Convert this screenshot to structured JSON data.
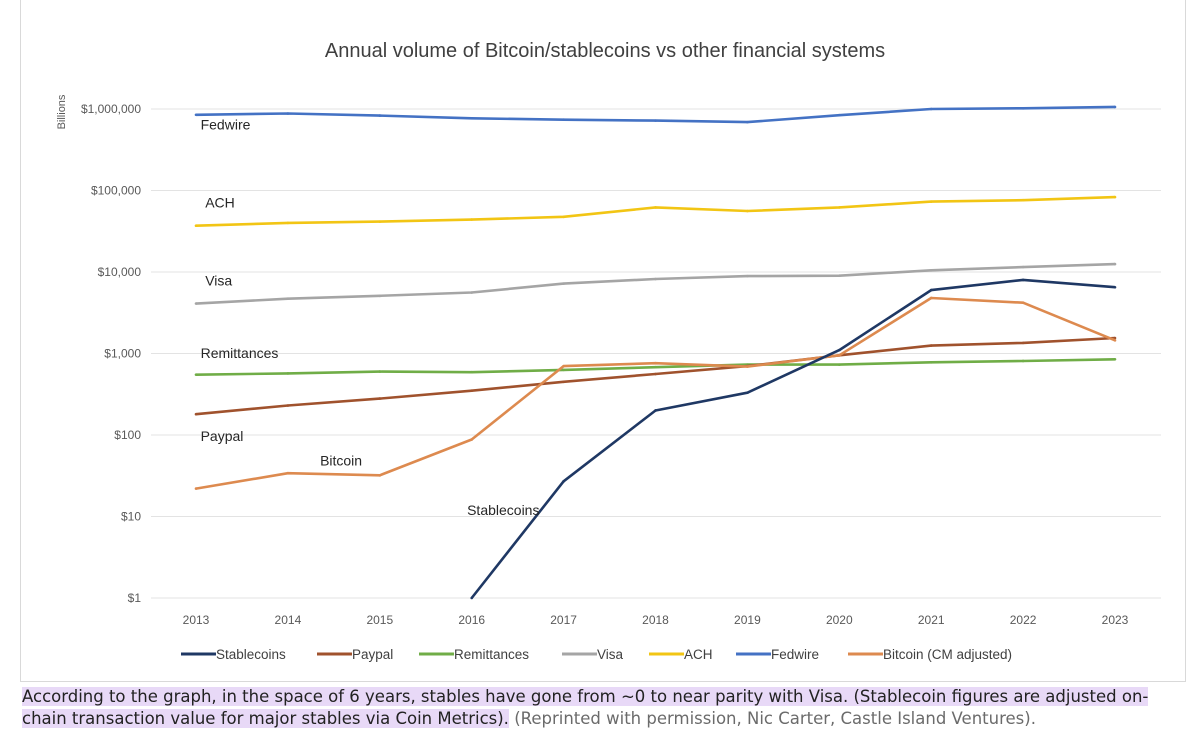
{
  "chart_data": {
    "type": "line",
    "title": "Annual volume of Bitcoin/stablecoins vs other financial systems",
    "ylabel": "Billions",
    "xlabel": "",
    "y_scale": "log",
    "ylim": [
      1,
      1000000
    ],
    "y_ticks": [
      {
        "value": 1,
        "label": "$1"
      },
      {
        "value": 10,
        "label": "$10"
      },
      {
        "value": 100,
        "label": "$100"
      },
      {
        "value": 1000,
        "label": "$1,000"
      },
      {
        "value": 10000,
        "label": "$10,000"
      },
      {
        "value": 100000,
        "label": "$100,000"
      },
      {
        "value": 1000000,
        "label": "$1,000,000"
      }
    ],
    "x": [
      2013,
      2014,
      2015,
      2016,
      2017,
      2018,
      2019,
      2020,
      2021,
      2022,
      2023
    ],
    "grid": "horizontal",
    "legend_position": "bottom",
    "series": [
      {
        "name": "Stablecoins",
        "color": "#1f3864",
        "values": [
          null,
          null,
          null,
          1,
          27,
          200,
          330,
          1100,
          6000,
          8000,
          6500
        ]
      },
      {
        "name": "Paypal",
        "color": "#a0522d",
        "values": [
          180,
          230,
          280,
          350,
          450,
          560,
          700,
          950,
          1250,
          1350,
          1550
        ]
      },
      {
        "name": "Remittances",
        "color": "#70ad47",
        "values": [
          550,
          570,
          600,
          590,
          630,
          680,
          730,
          730,
          780,
          810,
          850
        ]
      },
      {
        "name": "Visa",
        "color": "#a5a5a5",
        "values": [
          4100,
          4700,
          5100,
          5600,
          7200,
          8200,
          8900,
          9000,
          10500,
          11500,
          12500
        ]
      },
      {
        "name": "ACH",
        "color": "#f2c514",
        "values": [
          37000,
          40000,
          41500,
          44000,
          47500,
          62000,
          56000,
          62000,
          73000,
          76000,
          83000
        ]
      },
      {
        "name": "Fedwire",
        "color": "#4472c4",
        "values": [
          850000,
          880000,
          830000,
          770000,
          740000,
          720000,
          690000,
          840000,
          1000000,
          1020000,
          1060000
        ]
      },
      {
        "name": "Bitcoin (CM adjusted)",
        "color": "#dd8a4f",
        "values": [
          22,
          34,
          32,
          88,
          700,
          760,
          690,
          950,
          4800,
          4200,
          1450
        ]
      }
    ],
    "annotations": [
      {
        "text": "Fedwire",
        "x": 2013.05,
        "y": 560000
      },
      {
        "text": "ACH",
        "x": 2013.1,
        "y": 62000
      },
      {
        "text": "Visa",
        "x": 2013.1,
        "y": 6800
      },
      {
        "text": "Remittances",
        "x": 2013.05,
        "y": 880
      },
      {
        "text": "Paypal",
        "x": 2013.05,
        "y": 85
      },
      {
        "text": "Bitcoin",
        "x": 2014.35,
        "y": 42
      },
      {
        "text": "Stablecoins",
        "x": 2015.95,
        "y": 10.5
      }
    ]
  },
  "caption": {
    "highlighted": "According to the graph, in the space of 6 years, stables have gone from ~0 to near parity with Visa. (Stablecoin figures are adjusted on-chain transaction value for major stables via Coin Metrics).",
    "credit": "(Reprinted with permission, Nic Carter, Castle Island Ventures)."
  }
}
